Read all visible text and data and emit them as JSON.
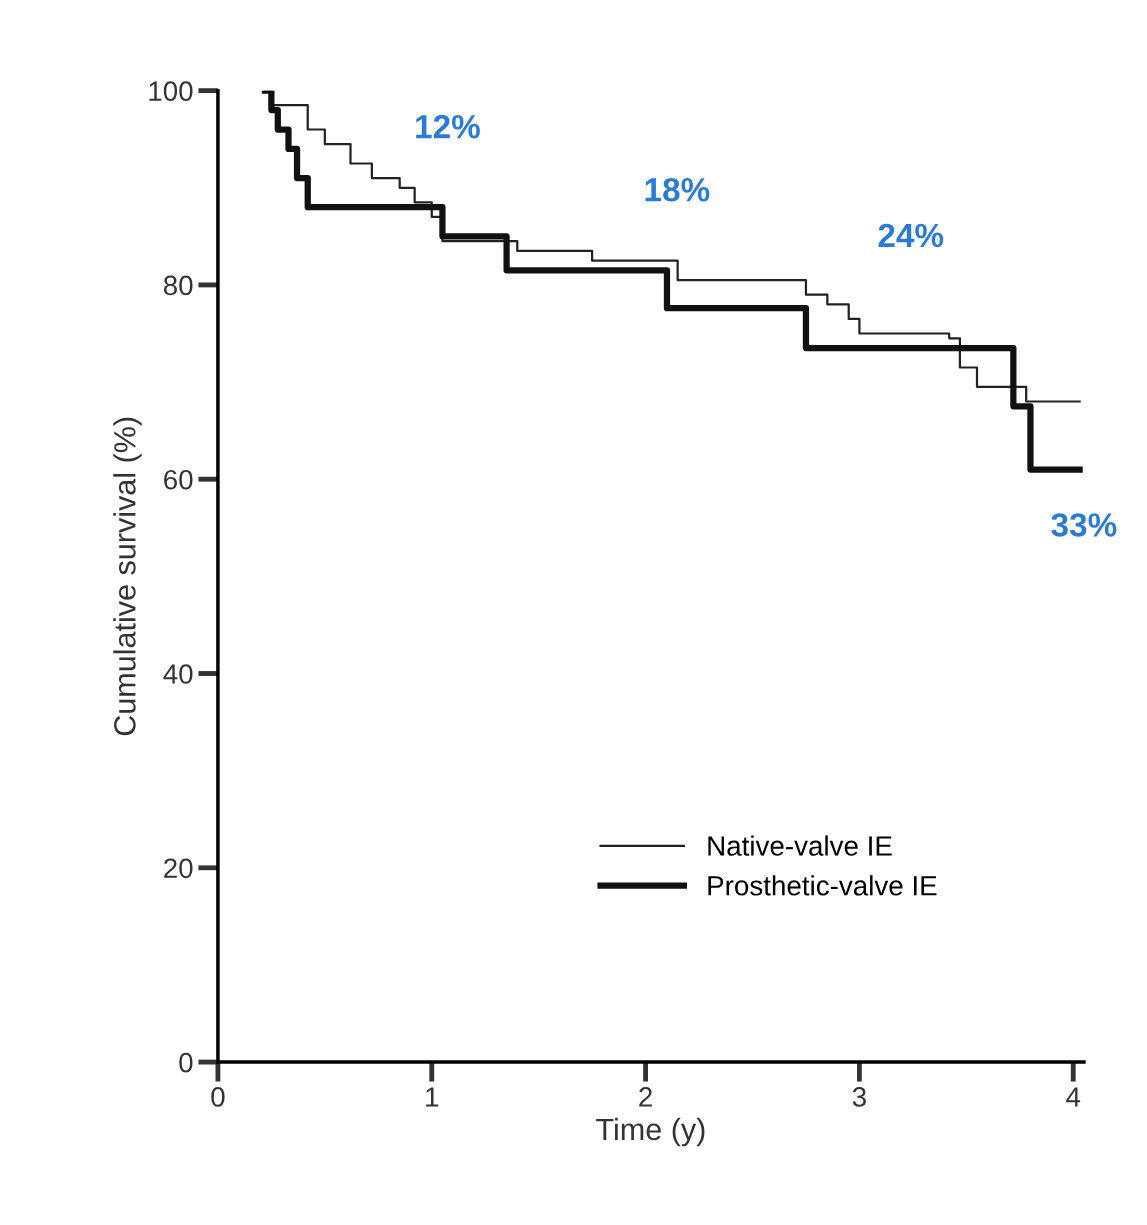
{
  "chart_data": {
    "type": "step",
    "xlabel": "Time (y)",
    "ylabel": "Cumulative survival (%)",
    "xlim": [
      0,
      4.05
    ],
    "ylim": [
      0,
      100
    ],
    "xticks": [
      0,
      1,
      2,
      3,
      4
    ],
    "yticks": [
      0,
      20,
      40,
      60,
      80,
      100
    ],
    "grid": false,
    "legend": "bottom right",
    "line_style": "solid",
    "marker": "none",
    "series": [
      {
        "name": "Native-valve IE",
        "color": "#222222",
        "x": [
          0.22,
          0.25,
          0.42,
          0.5,
          0.62,
          0.72,
          0.85,
          0.92,
          1.0,
          1.05,
          1.2,
          1.4,
          1.75,
          2.15,
          2.75,
          2.85,
          2.95,
          3.0,
          3.42,
          3.47,
          3.55,
          3.72,
          3.78,
          4.03
        ],
        "values": [
          100,
          98.5,
          96,
          94.5,
          92.5,
          91,
          90,
          88.5,
          87,
          84.5,
          84.5,
          83.5,
          82.5,
          80.5,
          79,
          78,
          76.5,
          75,
          74.5,
          71.5,
          69.5,
          69.5,
          68,
          68
        ]
      },
      {
        "name": "Prosthetic-valve IE",
        "color": "#111111",
        "x": [
          0.22,
          0.25,
          0.28,
          0.33,
          0.37,
          0.42,
          1.0,
          1.05,
          1.35,
          2.1,
          2.75,
          3.72,
          3.8,
          4.03
        ],
        "values": [
          100,
          98,
          96,
          94,
          91,
          88,
          88,
          85,
          81.5,
          77.6,
          73.5,
          67.5,
          61,
          61
        ]
      }
    ],
    "annotations": [
      "12%",
      "18%",
      "24%",
      "33%"
    ]
  }
}
